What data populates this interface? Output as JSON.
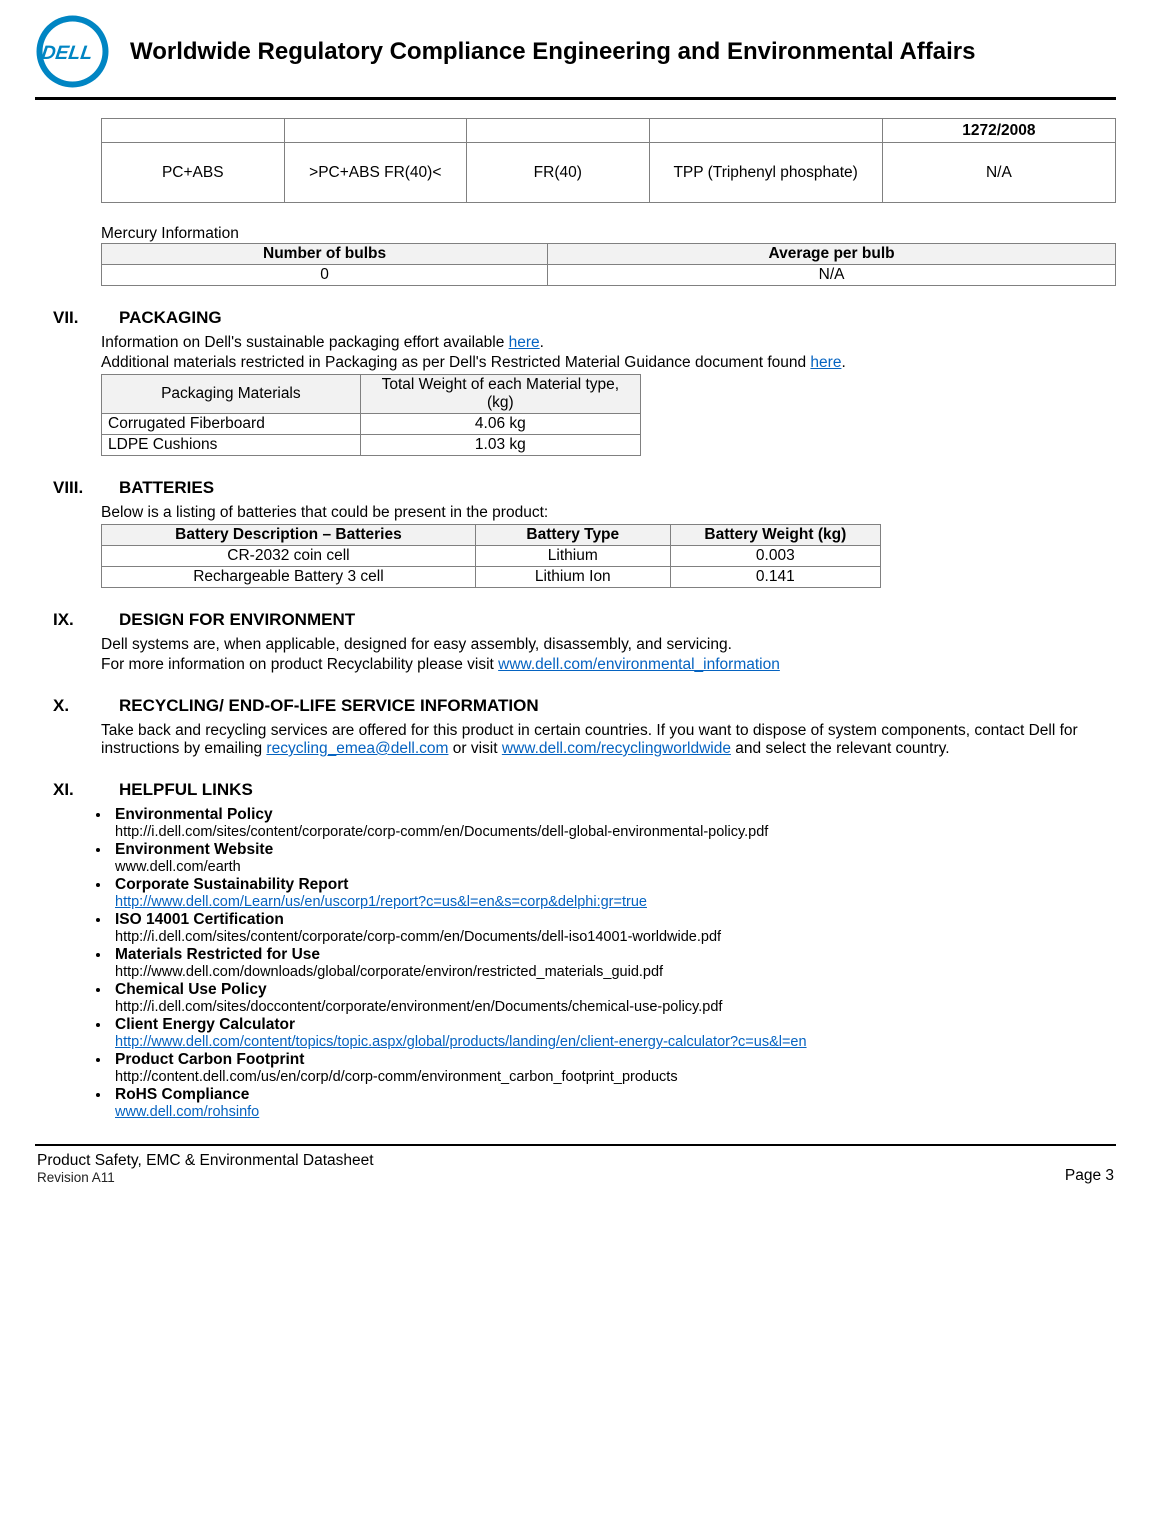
{
  "header": {
    "title": "Worldwide Regulatory Compliance Engineering and Environmental Affairs",
    "logo_outer_color": "#0085c3",
    "logo_inner_bg": "#ffffff",
    "logo_text_color": "#0085c3"
  },
  "table_fr": {
    "colwidths_pct": [
      18,
      18,
      18,
      23,
      23
    ],
    "row1": {
      "c1": "",
      "c2": "",
      "c3": "",
      "c4": "",
      "c5": "1272/2008"
    },
    "row2": {
      "c1": "PC+ABS",
      "c2": ">PC+ABS FR(40)<",
      "c3": "FR(40)",
      "c4": "TPP (Triphenyl phosphate)",
      "c5": "N/A"
    }
  },
  "mercury": {
    "caption": "Mercury Information",
    "h1": "Number of bulbs",
    "h2": "Average per bulb",
    "v1": "0",
    "v2": "N/A"
  },
  "sec7": {
    "num": "VII.",
    "title": "PACKAGING",
    "p1a": "Information on Dell's sustainable packaging effort available ",
    "p1link": "here",
    "p1b": ".",
    "p2a": "Additional materials restricted in Packaging as per Dell's Restricted Material Guidance document found ",
    "p2link": "here",
    "p2b": ".",
    "table": {
      "h1": "Packaging Materials",
      "h2": "Total Weight of each Material type, (kg)",
      "r1c1": "Corrugated Fiberboard",
      "r1c2": "4.06 kg",
      "r2c1": "LDPE Cushions",
      "r2c2": "1.03 kg"
    }
  },
  "sec8": {
    "num": "VIII.",
    "title": "BATTERIES",
    "intro": "Below is a listing of batteries that could be present in the product:",
    "table": {
      "h1": "Battery Description – Batteries",
      "h2": "Battery Type",
      "h3": "Battery Weight (kg)",
      "r1c1": "CR-2032 coin cell",
      "r1c2": "Lithium",
      "r1c3": "0.003",
      "r2c1": "Rechargeable Battery 3 cell",
      "r2c2": "Lithium Ion",
      "r2c3": "0.141"
    }
  },
  "sec9": {
    "num": "IX.",
    "title": "DESIGN FOR ENVIRONMENT",
    "p1": "Dell systems are, when applicable, designed for easy assembly, disassembly, and servicing.",
    "p2a": "For more information on product Recyclability please visit ",
    "p2link": "www.dell.com/environmental_information"
  },
  "sec10": {
    "num": "X.",
    "title": "RECYCLING/ END-OF-LIFE SERVICE INFORMATION",
    "p1a": "Take back and recycling services are offered for this product in certain countries. If you want to dispose of system components, contact Dell for instructions by emailing ",
    "p1link1": "recycling_emea@dell.com",
    "p1b": " or visit ",
    "p1link2": "www.dell.com/recyclingworldwide",
    "p1c": " and select the relevant country."
  },
  "sec11": {
    "num": "XI.",
    "title": "HELPFUL LINKS",
    "items": [
      {
        "t": "Environmental Policy",
        "u": "http://i.dell.com/sites/content/corporate/corp-comm/en/Documents/dell-global-environmental-policy.pdf",
        "linked": false
      },
      {
        "t": "Environment Website",
        "u": "www.dell.com/earth",
        "linked": false
      },
      {
        "t": "Corporate Sustainability Report",
        "u": "http://www.dell.com/Learn/us/en/uscorp1/report?c=us&l=en&s=corp&delphi:gr=true",
        "linked": true
      },
      {
        "t": "ISO 14001 Certification",
        "u": "http://i.dell.com/sites/content/corporate/corp-comm/en/Documents/dell-iso14001-worldwide.pdf",
        "linked": false
      },
      {
        "t": "Materials Restricted for Use",
        "u": "http://www.dell.com/downloads/global/corporate/environ/restricted_materials_guid.pdf",
        "linked": false
      },
      {
        "t": "Chemical Use Policy",
        "u": "http://i.dell.com/sites/doccontent/corporate/environment/en/Documents/chemical-use-policy.pdf",
        "linked": false
      },
      {
        "t": "Client Energy Calculator",
        "u": "http://www.dell.com/content/topics/topic.aspx/global/products/landing/en/client-energy-calculator?c=us&l=en",
        "linked": true
      },
      {
        "t": "Product Carbon Footprint",
        "u": "http://content.dell.com/us/en/corp/d/corp-comm/environment_carbon_footprint_products",
        "linked": false
      },
      {
        "t": "RoHS Compliance",
        "u": "www.dell.com/rohsinfo",
        "linked": true
      }
    ]
  },
  "footer": {
    "line1": "Product Safety, EMC & Environmental Datasheet",
    "rev": "Revision A11",
    "page": "Page 3"
  }
}
